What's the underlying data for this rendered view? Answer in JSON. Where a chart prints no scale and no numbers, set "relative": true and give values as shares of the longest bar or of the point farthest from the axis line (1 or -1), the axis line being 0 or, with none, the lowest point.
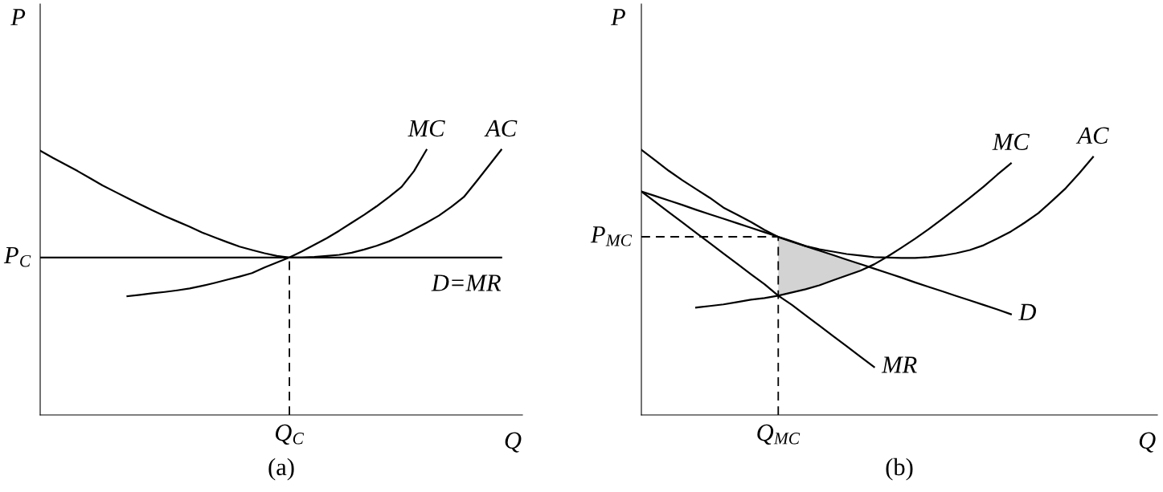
{
  "chart_data": [
    {
      "type": "line",
      "relative": true,
      "title": "(a)",
      "xlabel": "Q",
      "ylabel": "P",
      "categories": [
        null,
        null,
        null,
        null,
        null,
        null,
        null,
        null,
        null,
        null,
        null,
        null,
        null,
        null,
        null,
        null,
        null,
        null,
        null,
        null,
        null,
        null,
        null,
        null,
        null,
        null,
        null,
        null,
        null,
        null,
        null,
        null,
        null,
        null,
        null,
        null,
        null,
        null,
        null
      ],
      "annotations": [
        "P$_{C}$",
        "Q$_{C}$"
      ],
      "series": [
        {
          "name": "AC",
          "color": "#000000",
          "values": [
            0.997,
            0.97,
            0.945,
            0.92,
            0.893,
            0.866,
            0.842,
            0.818,
            0.795,
            0.772,
            0.75,
            0.73,
            0.71,
            0.688,
            0.67,
            0.652,
            0.635,
            0.622,
            0.61,
            0.6,
            0.594,
            0.594,
            0.596,
            0.6,
            0.604,
            0.612,
            0.624,
            0.638,
            0.655,
            0.676,
            0.7,
            0.725,
            0.752,
            0.785,
            0.822,
            0.88,
            0.94,
            1,
            null
          ]
        },
        {
          "name": "MC",
          "color": "#000000",
          "values": [
            null,
            null,
            null,
            null,
            null,
            null,
            null,
            0.448,
            0.453,
            0.459,
            0.464,
            0.47,
            0.477,
            0.487,
            0.498,
            0.51,
            0.522,
            0.535,
            0.556,
            0.575,
            0.594,
            0.617,
            0.642,
            0.667,
            0.695,
            0.725,
            0.755,
            0.787,
            0.822,
            0.86,
            0.92,
            1,
            null,
            null,
            null,
            null,
            null,
            null,
            null
          ]
        },
        {
          "name": "D=MR",
          "color": "#000000",
          "values": [
            0.594,
            0.594,
            0.594,
            0.594,
            0.594,
            0.594,
            0.594,
            0.594,
            0.594,
            0.594,
            0.594,
            0.594,
            0.594,
            0.594,
            0.594,
            0.594,
            0.594,
            0.594,
            0.594,
            0.594,
            0.594,
            0.594,
            0.594,
            0.594,
            0.594,
            0.594,
            0.594,
            0.594,
            0.594,
            0.594,
            0.594,
            0.594,
            0.594,
            0.594,
            0.594,
            0.594,
            0.594,
            0.594,
            null
          ]
        }
      ]
    },
    {
      "type": "line",
      "relative": true,
      "title": "(b)",
      "xlabel": "Q",
      "ylabel": "P",
      "categories": [
        null,
        null,
        null,
        null,
        null,
        null,
        null,
        null,
        null,
        null,
        null,
        null,
        null,
        null,
        null,
        null,
        null,
        null,
        null,
        null,
        null,
        null,
        null,
        null,
        null,
        null,
        null,
        null,
        null,
        null,
        null,
        null,
        null,
        null,
        null,
        null,
        null,
        null
      ],
      "annotations": [
        "Q$_{MC}$"
      ],
      "ref_lines": [
        {
          "axis": "y",
          "value": 0.672,
          "label": "P$_{MC}$",
          "line_style": "dashed",
          "color": "#000000"
        }
      ],
      "series": [
        {
          "type": "area",
          "color": "#d3d3d3",
          "values": [
            null,
            null,
            null,
            null,
            null,
            null,
            null,
            null,
            null,
            null,
            0.672,
            0.655,
            0.637,
            0.62,
            0.603,
            0.586,
            0.569,
            null,
            null,
            null,
            null,
            null,
            null,
            null,
            null,
            null,
            null,
            null,
            null,
            null,
            null,
            null,
            null,
            null,
            null,
            null,
            null,
            null
          ]
        },
        {
          "name": "AC",
          "color": "#000000",
          "values": [
            1,
            0.961,
            0.921,
            0.885,
            0.852,
            0.819,
            0.782,
            0.755,
            0.728,
            0.698,
            0.671,
            0.653,
            0.637,
            0.625,
            0.616,
            0.607,
            0.601,
            0.595,
            0.594,
            0.592,
            0.592,
            0.595,
            0.601,
            0.61,
            0.622,
            0.64,
            0.665,
            0.692,
            0.725,
            0.761,
            0.807,
            0.855,
            0.912,
            0.973,
            null,
            null,
            null,
            null
          ]
        },
        {
          "name": "MC",
          "color": "#000000",
          "values": [
            null,
            null,
            null,
            null,
            0.405,
            0.411,
            0.417,
            0.426,
            0.435,
            0.441,
            0.45,
            0.462,
            0.474,
            0.489,
            0.508,
            0.526,
            0.544,
            0.568,
            0.598,
            0.631,
            0.665,
            0.701,
            0.74,
            0.779,
            0.819,
            0.861,
            0.906,
            0.949,
            null,
            null,
            null,
            null,
            null,
            null,
            null,
            null,
            null,
            null
          ]
        },
        {
          "name": "D",
          "color": "#000000",
          "values": [
            0.843,
            0.826,
            0.809,
            0.792,
            0.774,
            0.757,
            0.74,
            0.723,
            0.706,
            0.689,
            0.672,
            0.655,
            0.637,
            0.62,
            0.603,
            0.586,
            0.569,
            0.552,
            0.535,
            0.518,
            0.5,
            0.483,
            0.466,
            0.449,
            0.432,
            0.415,
            0.398,
            0.38,
            null,
            null,
            null,
            null,
            null,
            null,
            null,
            null,
            null,
            null
          ]
        },
        {
          "name": "MR",
          "color": "#000000",
          "values": [
            0.843,
            0.804,
            0.765,
            0.726,
            0.687,
            0.648,
            0.609,
            0.57,
            0.531,
            0.493,
            0.45,
            0.415,
            0.376,
            0.337,
            0.298,
            0.259,
            0.22,
            0.181,
            null,
            null,
            null,
            null,
            null,
            null,
            null,
            null,
            null,
            null,
            null,
            null,
            null,
            null,
            null,
            null,
            null,
            null,
            null,
            null
          ]
        }
      ]
    }
  ]
}
